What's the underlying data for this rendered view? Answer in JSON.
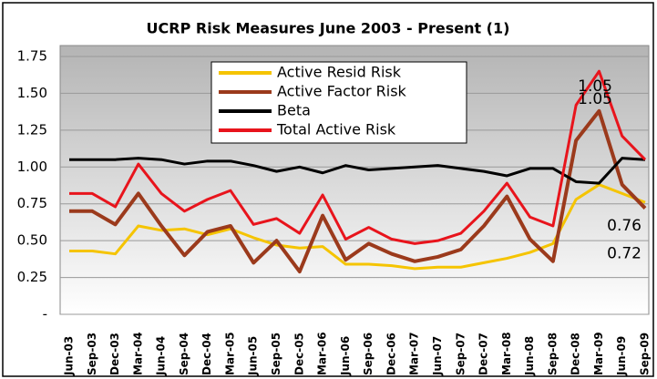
{
  "chart_data": {
    "type": "line",
    "title": "UCRP Risk Measures June 2003 - Present (1)",
    "categories": [
      "Jun-03",
      "Sep-03",
      "Dec-03",
      "Mar-04",
      "Jun-04",
      "Sep-04",
      "Dec-04",
      "Mar-05",
      "Jun-05",
      "Sep-05",
      "Dec-05",
      "Mar-06",
      "Jun-06",
      "Sep-06",
      "Dec-06",
      "Mar-07",
      "Jun-07",
      "Sep-07",
      "Dec-07",
      "Mar-08",
      "Jun-08",
      "Sep-08",
      "Dec-08",
      "Mar-09",
      "Jun-09",
      "Sep-09"
    ],
    "series": [
      {
        "name": "Active Resid Risk",
        "color": "#f5c400",
        "values": [
          0.43,
          0.43,
          0.41,
          0.6,
          0.57,
          0.58,
          0.54,
          0.58,
          0.52,
          0.47,
          0.45,
          0.46,
          0.34,
          0.34,
          0.33,
          0.31,
          0.32,
          0.32,
          0.35,
          0.38,
          0.42,
          0.48,
          0.78,
          0.88,
          0.82,
          0.76
        ]
      },
      {
        "name": "Active Factor Risk",
        "color": "#9b3a1c",
        "values": [
          0.7,
          0.7,
          0.61,
          0.82,
          0.6,
          0.4,
          0.56,
          0.6,
          0.35,
          0.5,
          0.29,
          0.67,
          0.37,
          0.48,
          0.41,
          0.36,
          0.39,
          0.44,
          0.6,
          0.8,
          0.51,
          0.36,
          1.18,
          1.38,
          0.88,
          0.72
        ]
      },
      {
        "name": "Beta",
        "color": "#000000",
        "values": [
          1.05,
          1.05,
          1.05,
          1.06,
          1.05,
          1.02,
          1.04,
          1.04,
          1.01,
          0.97,
          1.0,
          0.96,
          1.01,
          0.98,
          0.99,
          1.0,
          1.01,
          0.99,
          0.97,
          0.94,
          0.99,
          0.99,
          0.9,
          0.89,
          1.06,
          1.05
        ]
      },
      {
        "name": "Total Active Risk",
        "color": "#e8141c",
        "values": [
          0.82,
          0.82,
          0.73,
          1.02,
          0.82,
          0.7,
          0.78,
          0.84,
          0.61,
          0.65,
          0.55,
          0.81,
          0.51,
          0.59,
          0.51,
          0.48,
          0.5,
          0.55,
          0.7,
          0.89,
          0.66,
          0.6,
          1.42,
          1.65,
          1.21,
          1.05
        ]
      }
    ],
    "ylim": [
      0,
      1.75
    ],
    "yticks": [
      {
        "value": 0,
        "label": "-"
      },
      {
        "value": 0.25,
        "label": "0.25"
      },
      {
        "value": 0.5,
        "label": "0.50"
      },
      {
        "value": 0.75,
        "label": "0.75"
      },
      {
        "value": 1,
        "label": "1.00"
      },
      {
        "value": 1.25,
        "label": "1.25"
      },
      {
        "value": 1.5,
        "label": "1.50"
      },
      {
        "value": 1.75,
        "label": "1.75"
      }
    ],
    "grid": true
  }
}
